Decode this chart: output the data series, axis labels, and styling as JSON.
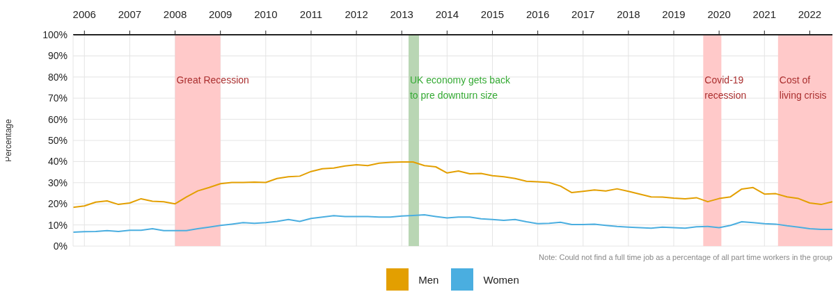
{
  "chart_data": {
    "type": "line",
    "ylabel": "Percentage",
    "x": [
      2005.75,
      2006,
      2006.25,
      2006.5,
      2006.75,
      2007,
      2007.25,
      2007.5,
      2007.75,
      2008,
      2008.25,
      2008.5,
      2008.75,
      2009,
      2009.25,
      2009.5,
      2009.75,
      2010,
      2010.25,
      2010.5,
      2010.75,
      2011,
      2011.25,
      2011.5,
      2011.75,
      2012,
      2012.25,
      2012.5,
      2012.75,
      2013,
      2013.25,
      2013.5,
      2013.75,
      2014,
      2014.25,
      2014.5,
      2014.75,
      2015,
      2015.25,
      2015.5,
      2015.75,
      2016,
      2016.25,
      2016.5,
      2016.75,
      2017,
      2017.25,
      2017.5,
      2017.75,
      2018,
      2018.25,
      2018.5,
      2018.75,
      2019,
      2019.25,
      2019.5,
      2019.75,
      2020,
      2020.25,
      2020.5,
      2020.75,
      2021,
      2021.25,
      2021.5,
      2021.75,
      2022,
      2022.25,
      2022.5
    ],
    "series": [
      {
        "name": "Men",
        "color": "#e39f00",
        "values": [
          18.3,
          19.0,
          20.8,
          21.4,
          19.7,
          20.4,
          22.4,
          21.2,
          21.0,
          20.0,
          23.2,
          26.1,
          27.7,
          29.5,
          30.1,
          30.1,
          30.3,
          30.1,
          32.0,
          32.8,
          33.1,
          35.3,
          36.6,
          36.9,
          37.9,
          38.5,
          38.1,
          39.2,
          39.6,
          39.8,
          39.8,
          38.1,
          37.5,
          34.6,
          35.5,
          34.2,
          34.4,
          33.3,
          32.8,
          32.0,
          30.7,
          30.4,
          30.1,
          28.4,
          25.3,
          25.9,
          26.6,
          26.1,
          27.1,
          25.9,
          24.6,
          23.3,
          23.2,
          22.7,
          22.4,
          22.9,
          21.0,
          22.5,
          23.3,
          27.0,
          27.7,
          24.6,
          24.8,
          23.3,
          22.5,
          20.4,
          19.7,
          21.0
        ]
      },
      {
        "name": "Women",
        "color": "#4aaee0",
        "values": [
          6.6,
          6.8,
          6.9,
          7.3,
          6.9,
          7.5,
          7.5,
          8.2,
          7.3,
          7.3,
          7.3,
          8.2,
          9.0,
          9.8,
          10.4,
          11.1,
          10.8,
          11.1,
          11.7,
          12.6,
          11.7,
          13.1,
          13.7,
          14.4,
          14.0,
          14.0,
          14.0,
          13.7,
          13.7,
          14.2,
          14.5,
          14.8,
          14.0,
          13.3,
          13.7,
          13.7,
          12.9,
          12.6,
          12.2,
          12.6,
          11.5,
          10.6,
          10.8,
          11.3,
          10.2,
          10.2,
          10.4,
          9.8,
          9.3,
          9.0,
          8.7,
          8.5,
          9.0,
          8.7,
          8.5,
          9.1,
          9.3,
          8.7,
          9.8,
          11.5,
          11.1,
          10.6,
          10.4,
          9.6,
          9.0,
          8.2,
          7.9,
          7.9
        ]
      }
    ],
    "xlim": [
      2005.75,
      2022.5
    ],
    "xticks": [
      2006,
      2007,
      2008,
      2009,
      2010,
      2011,
      2012,
      2013,
      2014,
      2015,
      2016,
      2017,
      2018,
      2019,
      2020,
      2021,
      2022
    ],
    "ylim": [
      0,
      100
    ],
    "yticks": [
      {
        "value": 0,
        "label": "0%"
      },
      {
        "value": 10,
        "label": "10%"
      },
      {
        "value": 20,
        "label": "20%"
      },
      {
        "value": 30,
        "label": "30%"
      },
      {
        "value": 40,
        "label": "40%"
      },
      {
        "value": 50,
        "label": "50%"
      },
      {
        "value": 60,
        "label": "60%"
      },
      {
        "value": 70,
        "label": "70%"
      },
      {
        "value": 80,
        "label": "80%"
      },
      {
        "value": 90,
        "label": "90%"
      },
      {
        "value": 100,
        "label": "100%"
      }
    ],
    "bands": [
      {
        "axis": "x",
        "from": 2008,
        "to": 2009,
        "label": "Great Recession",
        "color": "#ffc9c9"
      },
      {
        "axis": "x",
        "from": 2013.15,
        "to": 2013.38,
        "label": "UK economy gets back\nto pre downturn size",
        "color": "#b9d6b4"
      },
      {
        "axis": "x",
        "from": 2019.65,
        "to": 2020.05,
        "label": "Covid-19\nrecession",
        "color": "#ffc9c9"
      },
      {
        "axis": "x",
        "from": 2021.3,
        "to": 2022.5,
        "label": "Cost of\nliving crisis",
        "color": "#ffc9c9"
      }
    ],
    "annotations": [
      "Note: Could not find a full time job as a percentage of all part time workers in the group"
    ],
    "grid": true,
    "legend": "bottom"
  }
}
